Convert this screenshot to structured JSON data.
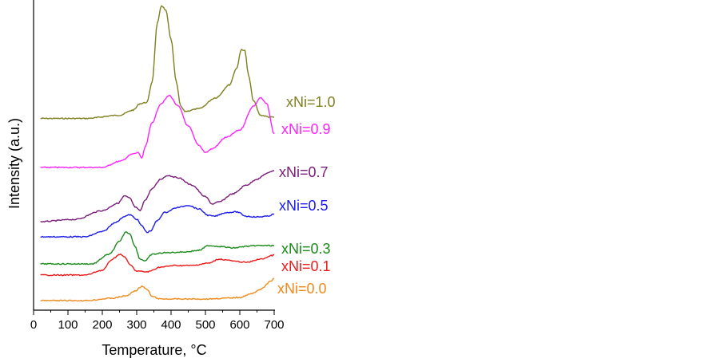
{
  "chart_data": {
    "type": "line",
    "xlabel": "Temperature, °C",
    "ylabel": "Intensity (a.u.)",
    "xlim": [
      0,
      700
    ],
    "x_ticks": [
      0,
      100,
      200,
      300,
      400,
      500,
      600,
      700
    ],
    "x_tick_labels": [
      "0",
      "100",
      "200",
      "300",
      "400",
      "500",
      "600",
      "700"
    ],
    "y_ticks_shown": false,
    "grid": false,
    "legend": "inline labels at right end of each curve",
    "series": [
      {
        "name": "xNi=1.0",
        "color": "#7f7f1f",
        "points": [
          [
            20,
            3
          ],
          [
            150,
            3
          ],
          [
            250,
            8
          ],
          [
            290,
            16
          ],
          [
            310,
            26
          ],
          [
            330,
            28
          ],
          [
            345,
            60
          ],
          [
            360,
            150
          ],
          [
            372,
            178
          ],
          [
            385,
            170
          ],
          [
            400,
            125
          ],
          [
            415,
            60
          ],
          [
            428,
            22
          ],
          [
            440,
            14
          ],
          [
            480,
            18
          ],
          [
            530,
            35
          ],
          [
            570,
            55
          ],
          [
            590,
            80
          ],
          [
            605,
            110
          ],
          [
            615,
            108
          ],
          [
            625,
            70
          ],
          [
            640,
            30
          ],
          [
            660,
            8
          ],
          [
            690,
            5
          ],
          [
            700,
            5
          ]
        ]
      },
      {
        "name": "xNi=0.9",
        "color": "#ff22ff",
        "points": [
          [
            20,
            0
          ],
          [
            200,
            0
          ],
          [
            250,
            8
          ],
          [
            290,
            18
          ],
          [
            305,
            20
          ],
          [
            315,
            12
          ],
          [
            325,
            28
          ],
          [
            345,
            60
          ],
          [
            370,
            85
          ],
          [
            395,
            96
          ],
          [
            420,
            82
          ],
          [
            450,
            55
          ],
          [
            480,
            30
          ],
          [
            500,
            20
          ],
          [
            520,
            25
          ],
          [
            560,
            40
          ],
          [
            600,
            50
          ],
          [
            640,
            82
          ],
          [
            660,
            93
          ],
          [
            678,
            85
          ],
          [
            700,
            45
          ]
        ]
      },
      {
        "name": "xNi=0.7",
        "color": "#7a1a7a",
        "points": [
          [
            20,
            0
          ],
          [
            120,
            3
          ],
          [
            200,
            15
          ],
          [
            245,
            25
          ],
          [
            265,
            35
          ],
          [
            280,
            32
          ],
          [
            295,
            20
          ],
          [
            310,
            15
          ],
          [
            325,
            30
          ],
          [
            345,
            45
          ],
          [
            370,
            58
          ],
          [
            390,
            63
          ],
          [
            420,
            60
          ],
          [
            460,
            50
          ],
          [
            500,
            34
          ],
          [
            520,
            24
          ],
          [
            540,
            27
          ],
          [
            580,
            38
          ],
          [
            620,
            50
          ],
          [
            650,
            58
          ],
          [
            680,
            66
          ],
          [
            700,
            70
          ]
        ]
      },
      {
        "name": "xNi=0.5",
        "color": "#1a1aee",
        "points": [
          [
            20,
            0
          ],
          [
            150,
            0
          ],
          [
            200,
            7
          ],
          [
            240,
            20
          ],
          [
            265,
            28
          ],
          [
            280,
            30
          ],
          [
            300,
            24
          ],
          [
            315,
            15
          ],
          [
            330,
            6
          ],
          [
            340,
            8
          ],
          [
            360,
            22
          ],
          [
            380,
            33
          ],
          [
            420,
            40
          ],
          [
            450,
            43
          ],
          [
            480,
            38
          ],
          [
            510,
            29
          ],
          [
            525,
            28
          ],
          [
            560,
            33
          ],
          [
            590,
            34
          ],
          [
            620,
            28
          ],
          [
            650,
            27
          ],
          [
            680,
            28
          ],
          [
            700,
            31
          ]
        ]
      },
      {
        "name": "xNi=0.3",
        "color": "#1a8a1a",
        "points": [
          [
            20,
            0
          ],
          [
            170,
            0
          ],
          [
            220,
            12
          ],
          [
            250,
            28
          ],
          [
            268,
            40
          ],
          [
            280,
            38
          ],
          [
            295,
            22
          ],
          [
            310,
            6
          ],
          [
            325,
            4
          ],
          [
            345,
            12
          ],
          [
            380,
            14
          ],
          [
            440,
            15
          ],
          [
            480,
            17
          ],
          [
            510,
            23
          ],
          [
            540,
            22
          ],
          [
            580,
            20
          ],
          [
            620,
            22
          ],
          [
            650,
            23
          ],
          [
            700,
            23
          ]
        ]
      },
      {
        "name": "xNi=0.1",
        "color": "#ee1a1a",
        "points": [
          [
            20,
            0
          ],
          [
            150,
            0
          ],
          [
            200,
            6
          ],
          [
            230,
            20
          ],
          [
            250,
            26
          ],
          [
            265,
            23
          ],
          [
            280,
            13
          ],
          [
            300,
            5
          ],
          [
            330,
            4
          ],
          [
            370,
            10
          ],
          [
            410,
            12
          ],
          [
            460,
            12
          ],
          [
            510,
            15
          ],
          [
            540,
            20
          ],
          [
            560,
            19
          ],
          [
            590,
            17
          ],
          [
            620,
            16
          ],
          [
            660,
            20
          ],
          [
            700,
            25
          ]
        ]
      },
      {
        "name": "xNi=0.0",
        "color": "#f08a1a",
        "points": [
          [
            20,
            0
          ],
          [
            150,
            0
          ],
          [
            230,
            3
          ],
          [
            270,
            6
          ],
          [
            295,
            12
          ],
          [
            315,
            18
          ],
          [
            330,
            14
          ],
          [
            345,
            5
          ],
          [
            370,
            2
          ],
          [
            430,
            2
          ],
          [
            500,
            2
          ],
          [
            560,
            3
          ],
          [
            600,
            4
          ],
          [
            630,
            8
          ],
          [
            660,
            14
          ],
          [
            690,
            24
          ],
          [
            700,
            28
          ]
        ]
      }
    ]
  }
}
